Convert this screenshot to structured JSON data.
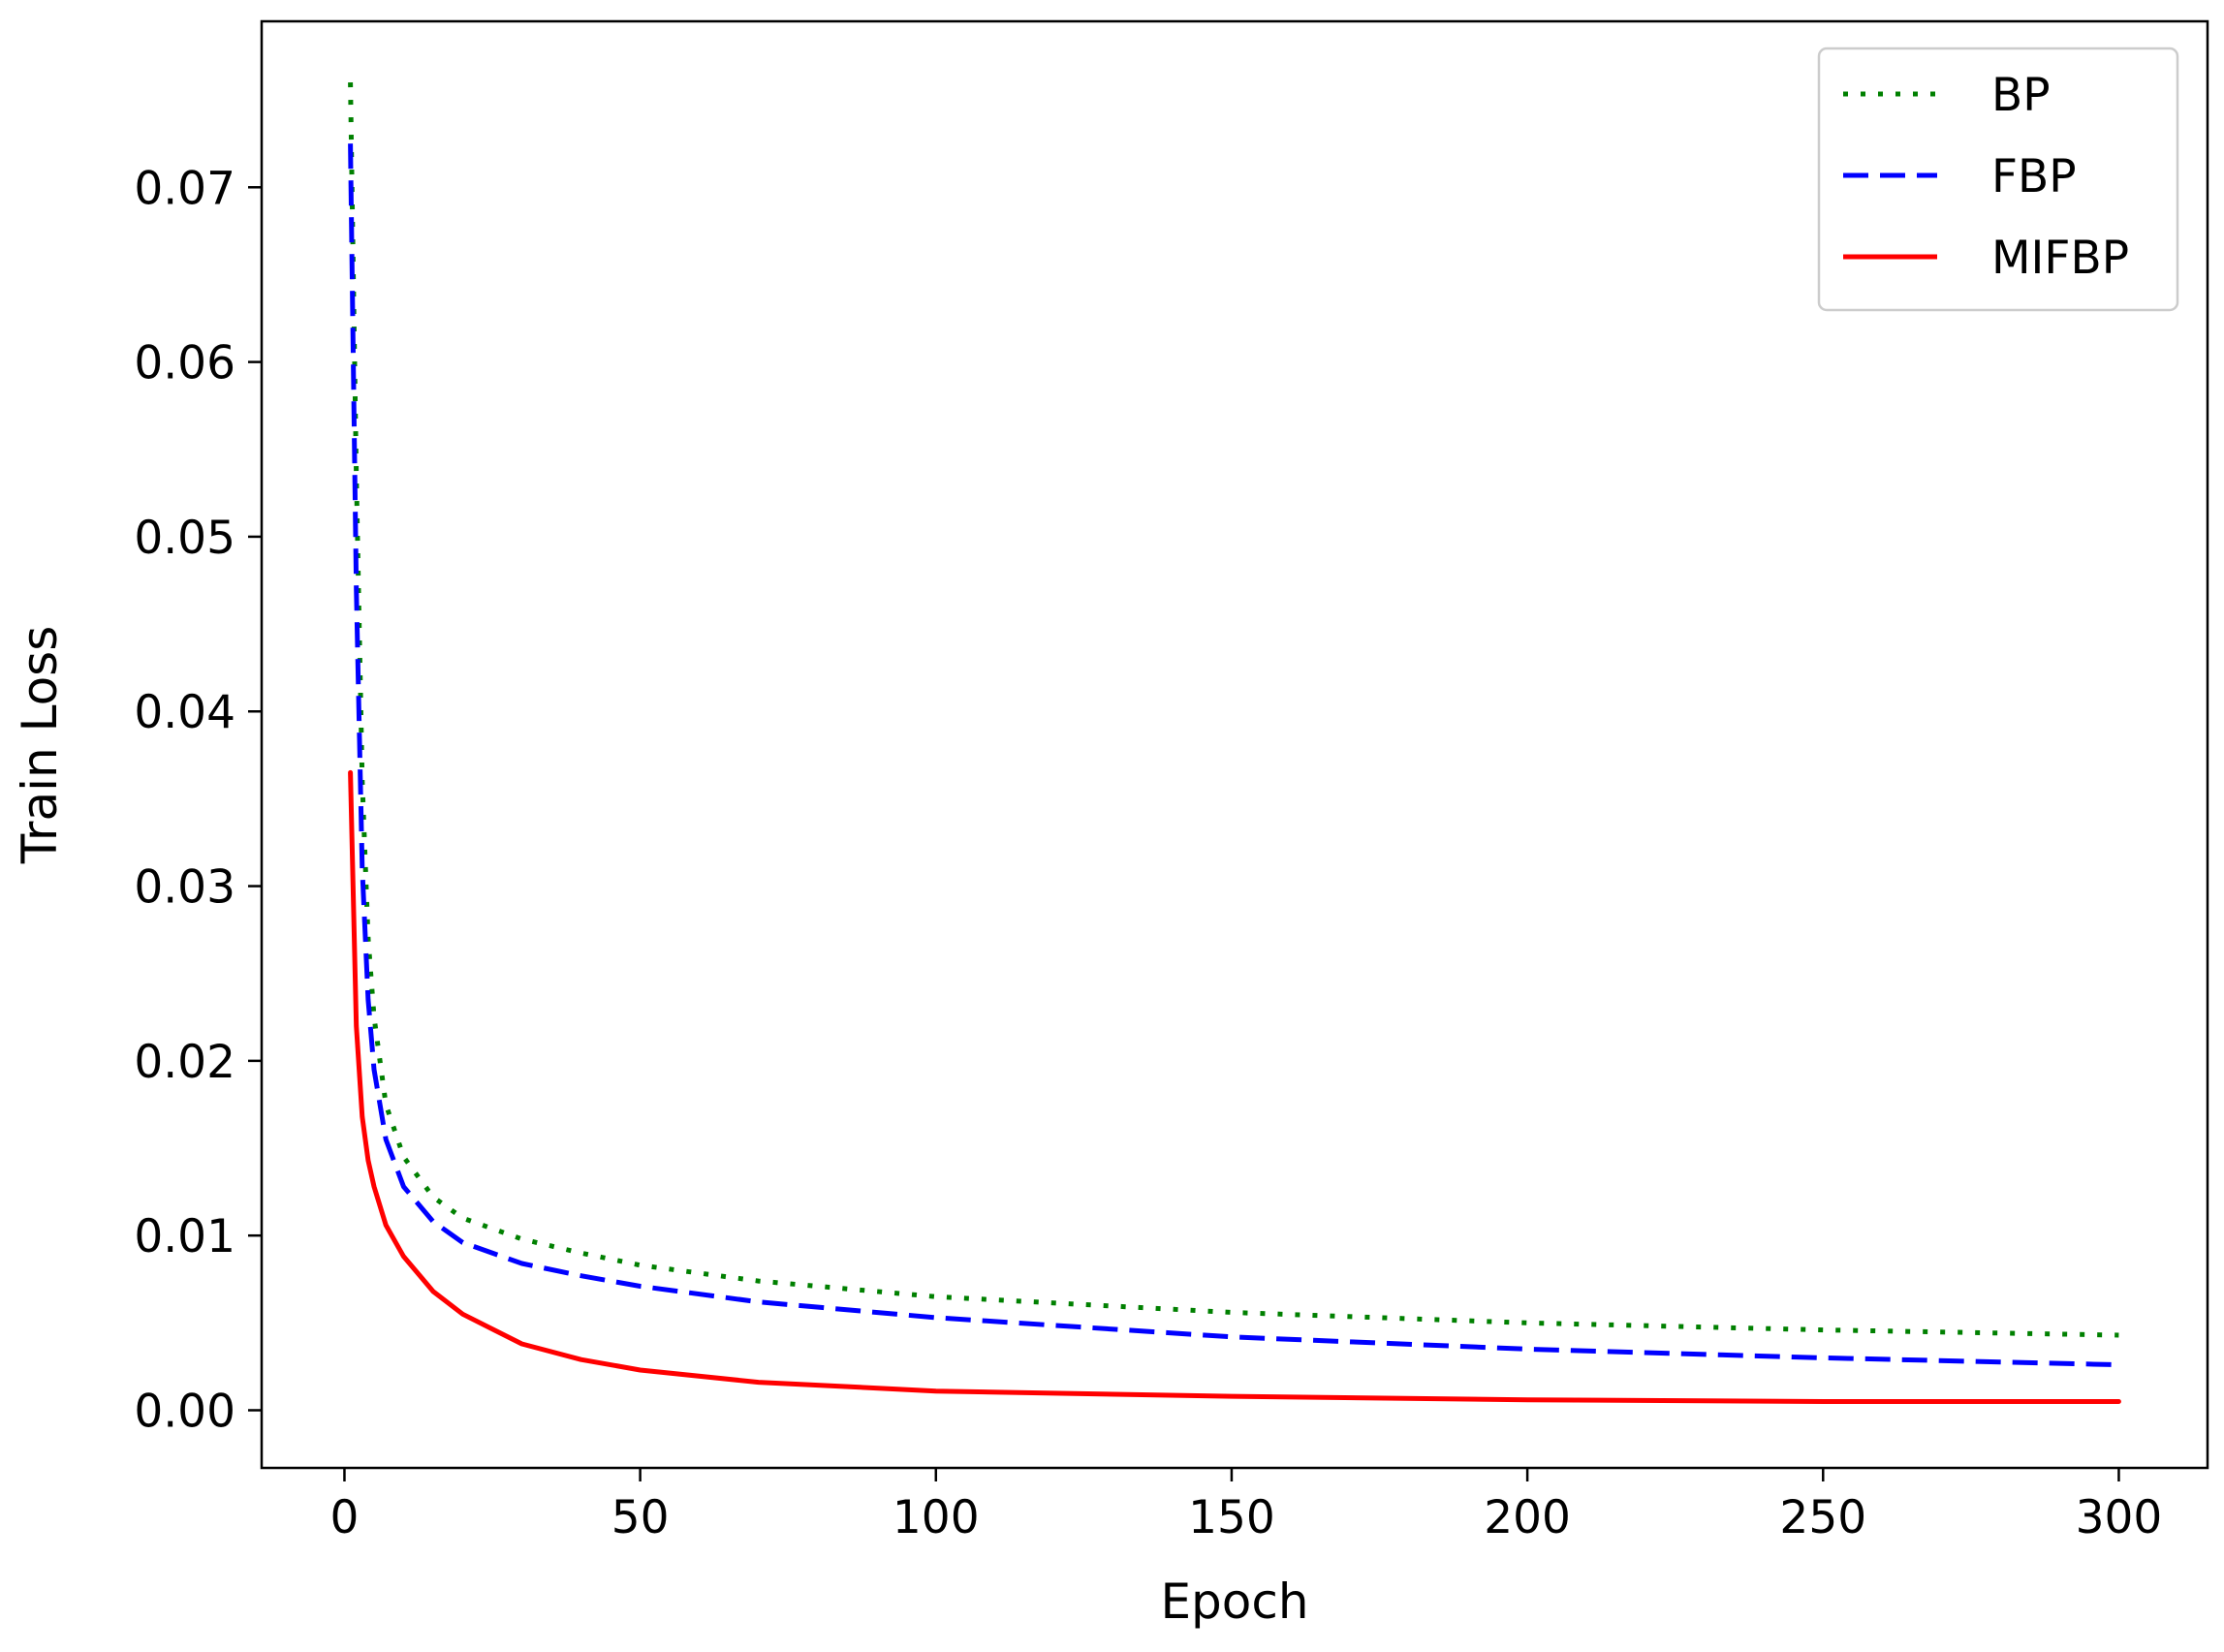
{
  "chart_data": {
    "type": "line",
    "title": "",
    "xlabel": "Epoch",
    "ylabel": "Train Loss",
    "xlim": [
      -14,
      315
    ],
    "ylim": [
      -0.0033,
      0.0795
    ],
    "xticks": [
      0,
      50,
      100,
      150,
      200,
      250,
      300
    ],
    "xtick_labels": [
      "0",
      "50",
      "100",
      "150",
      "200",
      "250",
      "300"
    ],
    "yticks": [
      0.0,
      0.01,
      0.02,
      0.03,
      0.04,
      0.05,
      0.06,
      0.07
    ],
    "ytick_labels": [
      "0.00",
      "0.01",
      "0.02",
      "0.03",
      "0.04",
      "0.05",
      "0.06",
      "0.07"
    ],
    "grid": false,
    "legend_position": "upper right",
    "x": [
      1,
      2,
      3,
      4,
      5,
      7,
      10,
      15,
      20,
      30,
      40,
      50,
      70,
      100,
      150,
      200,
      250,
      300
    ],
    "series": [
      {
        "name": "BP",
        "color": "#008000",
        "style": "dotted",
        "values": [
          0.076,
          0.0535,
          0.036,
          0.027,
          0.0225,
          0.0175,
          0.0145,
          0.0122,
          0.011,
          0.0098,
          0.009,
          0.0083,
          0.0074,
          0.0065,
          0.0056,
          0.005,
          0.0046,
          0.0043
        ]
      },
      {
        "name": "FBP",
        "color": "#0000ff",
        "style": "dashed",
        "values": [
          0.0725,
          0.047,
          0.031,
          0.0235,
          0.0195,
          0.0155,
          0.0128,
          0.0108,
          0.0096,
          0.0084,
          0.0077,
          0.0071,
          0.0062,
          0.0053,
          0.0042,
          0.0035,
          0.003,
          0.0026
        ]
      },
      {
        "name": "MIFBP",
        "color": "#ff0000",
        "style": "solid",
        "values": [
          0.0365,
          0.022,
          0.0168,
          0.0143,
          0.0128,
          0.0106,
          0.0088,
          0.0068,
          0.0055,
          0.0038,
          0.0029,
          0.0023,
          0.0016,
          0.0011,
          0.0008,
          0.0006,
          0.0005,
          0.0005
        ]
      }
    ]
  }
}
